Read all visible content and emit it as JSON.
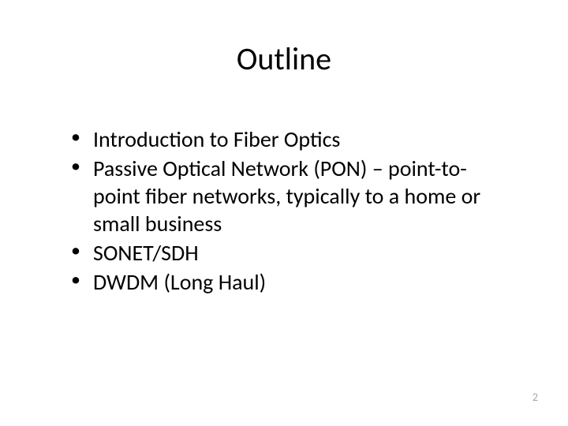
{
  "slide": {
    "title": "Outline",
    "bullets": [
      "Introduction to Fiber Optics",
      "Passive Optical Network (PON) – point-to-point fiber networks, typically to a home or small business",
      "SONET/SDH",
      "DWDM (Long Haul)"
    ],
    "pageNumber": "2"
  },
  "style": {
    "backgroundColor": "#ffffff",
    "titleColor": "#000000",
    "titleFontSize": 40,
    "bodyColor": "#000000",
    "bodyFontSize": 28,
    "pageNumberColor": "#a6a6a6",
    "pageNumberFontSize": 14,
    "fontFamily": "Calibri"
  }
}
